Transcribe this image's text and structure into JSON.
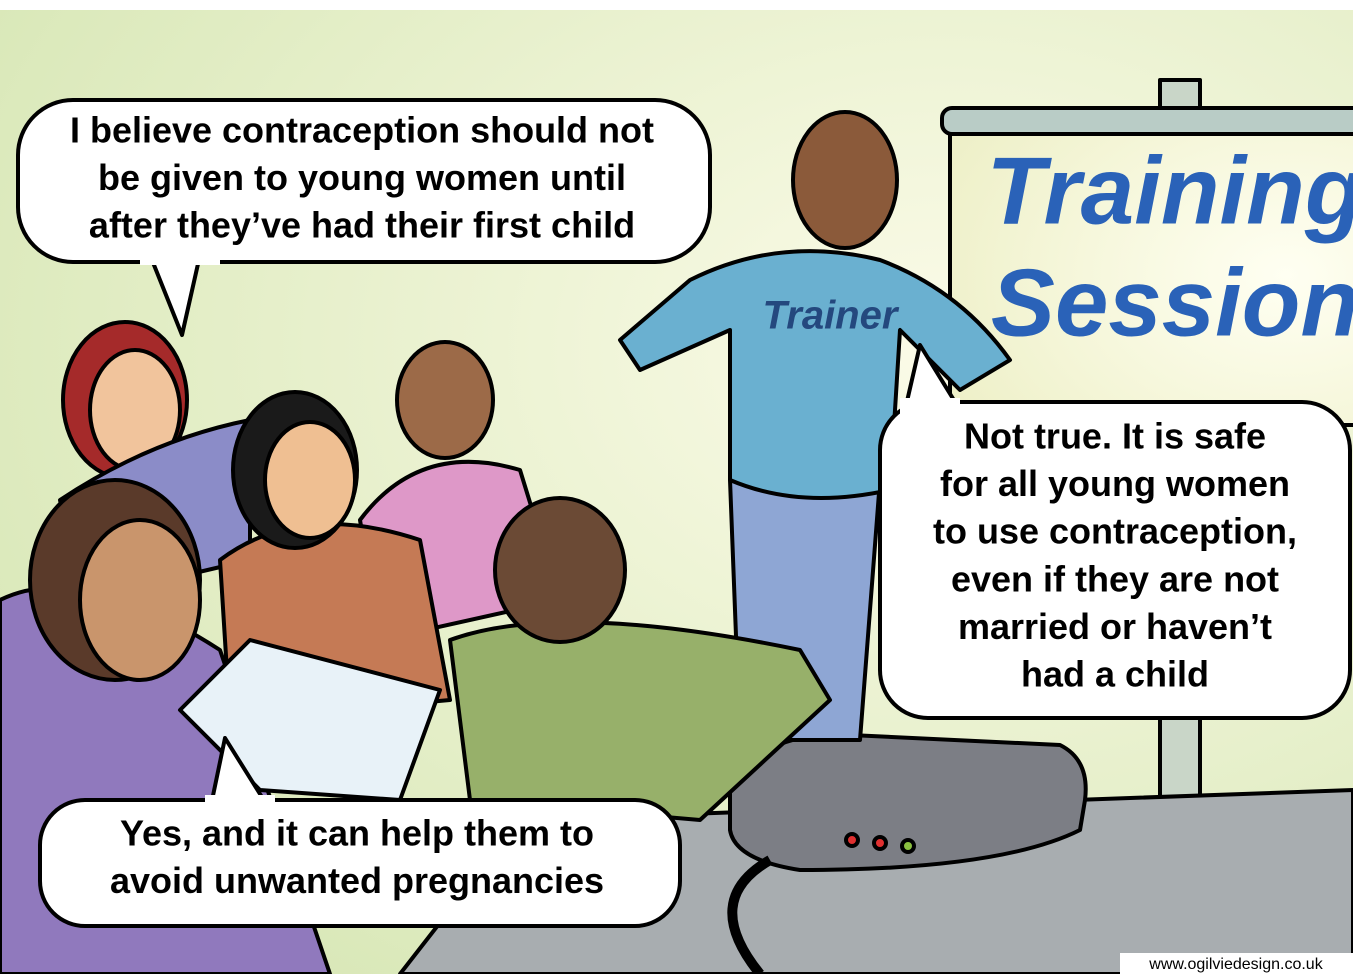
{
  "bubbles": [
    {
      "lines": [
        "I believe contraception should not",
        "be given to young women until",
        "after they’ve had their first child"
      ]
    },
    {
      "lines": [
        "Not true. It is safe",
        "for all young women",
        "to use contraception,",
        "even if they are not",
        "married or haven’t",
        "had a child"
      ]
    },
    {
      "lines": [
        "Yes, and it can help them to",
        "avoid unwanted pregnancies"
      ]
    }
  ],
  "board": {
    "lines": [
      "Training",
      "Session"
    ]
  },
  "shirt_label": "Trainer",
  "credit": "www.ogilviedesign.co.uk"
}
